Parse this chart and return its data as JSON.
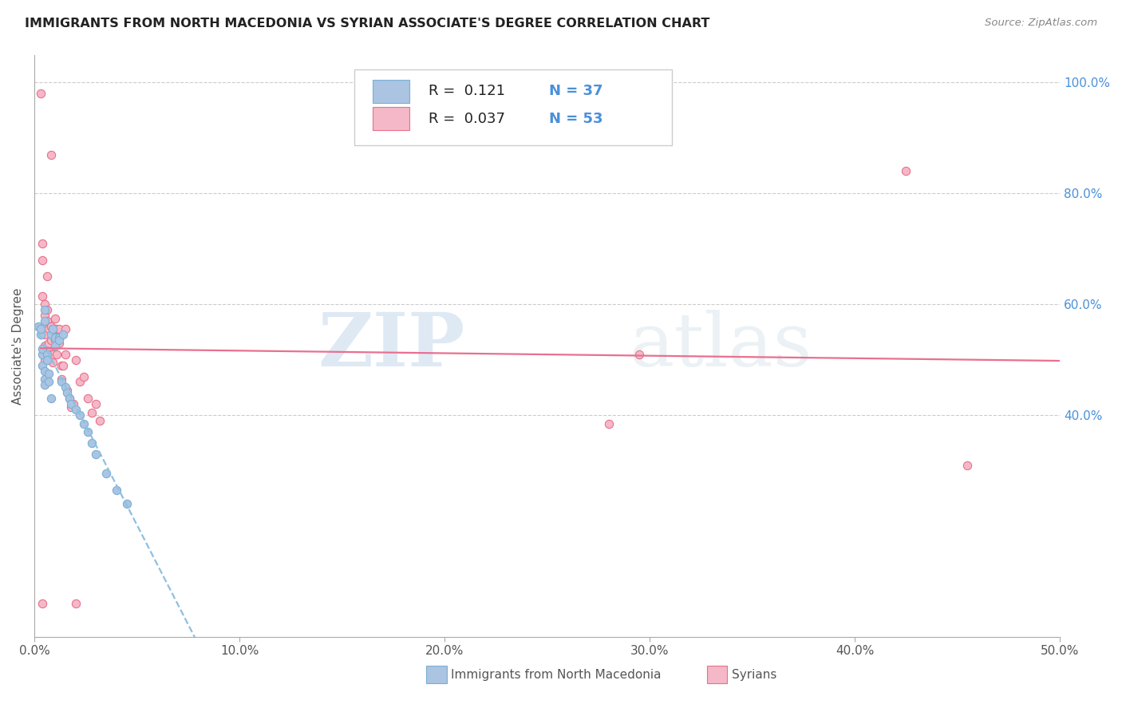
{
  "title": "IMMIGRANTS FROM NORTH MACEDONIA VS SYRIAN ASSOCIATE'S DEGREE CORRELATION CHART",
  "source": "Source: ZipAtlas.com",
  "ylabel": "Associate's Degree",
  "xlim": [
    0.0,
    0.5
  ],
  "ylim": [
    0.0,
    1.05
  ],
  "xtick_labels": [
    "0.0%",
    "10.0%",
    "20.0%",
    "30.0%",
    "40.0%",
    "50.0%"
  ],
  "xtick_vals": [
    0.0,
    0.1,
    0.2,
    0.3,
    0.4,
    0.5
  ],
  "ytick_labels": [
    "100.0%",
    "80.0%",
    "60.0%",
    "40.0%"
  ],
  "ytick_vals": [
    1.0,
    0.8,
    0.6,
    0.4
  ],
  "color_blue": "#aac4e2",
  "color_pink": "#f5b8c8",
  "edge_blue": "#7aafd4",
  "edge_pink": "#e8708a",
  "trendline_blue": "#8ec0e0",
  "trendline_pink": "#e87090",
  "watermark_color": "#ccdde8",
  "legend_R_blue": "0.121",
  "legend_N_blue": "37",
  "legend_R_pink": "0.037",
  "legend_N_pink": "53",
  "legend_label_blue": "Immigrants from North Macedonia",
  "legend_label_pink": "Syrians",
  "blue_x": [
    0.002,
    0.003,
    0.003,
    0.004,
    0.004,
    0.004,
    0.005,
    0.005,
    0.005,
    0.005,
    0.006,
    0.006,
    0.007,
    0.007,
    0.008,
    0.008,
    0.009,
    0.01,
    0.01,
    0.012,
    0.012,
    0.013,
    0.014,
    0.015,
    0.016,
    0.017,
    0.018,
    0.02,
    0.022,
    0.024,
    0.026,
    0.028,
    0.03,
    0.035,
    0.04,
    0.045,
    0.005
  ],
  "blue_y": [
    0.56,
    0.545,
    0.555,
    0.51,
    0.52,
    0.49,
    0.48,
    0.57,
    0.465,
    0.455,
    0.51,
    0.5,
    0.475,
    0.46,
    0.545,
    0.43,
    0.555,
    0.54,
    0.525,
    0.54,
    0.535,
    0.46,
    0.545,
    0.45,
    0.44,
    0.43,
    0.42,
    0.41,
    0.4,
    0.385,
    0.37,
    0.35,
    0.33,
    0.295,
    0.265,
    0.24,
    0.59
  ],
  "pink_x": [
    0.003,
    0.004,
    0.004,
    0.004,
    0.005,
    0.005,
    0.005,
    0.005,
    0.005,
    0.005,
    0.006,
    0.006,
    0.006,
    0.007,
    0.007,
    0.007,
    0.007,
    0.008,
    0.008,
    0.008,
    0.009,
    0.009,
    0.009,
    0.01,
    0.01,
    0.01,
    0.011,
    0.011,
    0.012,
    0.012,
    0.013,
    0.013,
    0.014,
    0.015,
    0.015,
    0.016,
    0.017,
    0.018,
    0.019,
    0.02,
    0.022,
    0.024,
    0.026,
    0.028,
    0.03,
    0.032,
    0.28,
    0.295,
    0.425,
    0.455,
    0.008,
    0.02,
    0.004
  ],
  "pink_y": [
    0.98,
    0.71,
    0.68,
    0.615,
    0.6,
    0.58,
    0.56,
    0.545,
    0.525,
    0.5,
    0.65,
    0.59,
    0.57,
    0.555,
    0.53,
    0.515,
    0.5,
    0.56,
    0.535,
    0.51,
    0.555,
    0.51,
    0.495,
    0.575,
    0.555,
    0.535,
    0.555,
    0.51,
    0.555,
    0.53,
    0.49,
    0.465,
    0.49,
    0.555,
    0.51,
    0.445,
    0.43,
    0.415,
    0.42,
    0.5,
    0.46,
    0.47,
    0.43,
    0.405,
    0.42,
    0.39,
    0.385,
    0.51,
    0.84,
    0.31,
    0.87,
    0.06,
    0.06
  ]
}
